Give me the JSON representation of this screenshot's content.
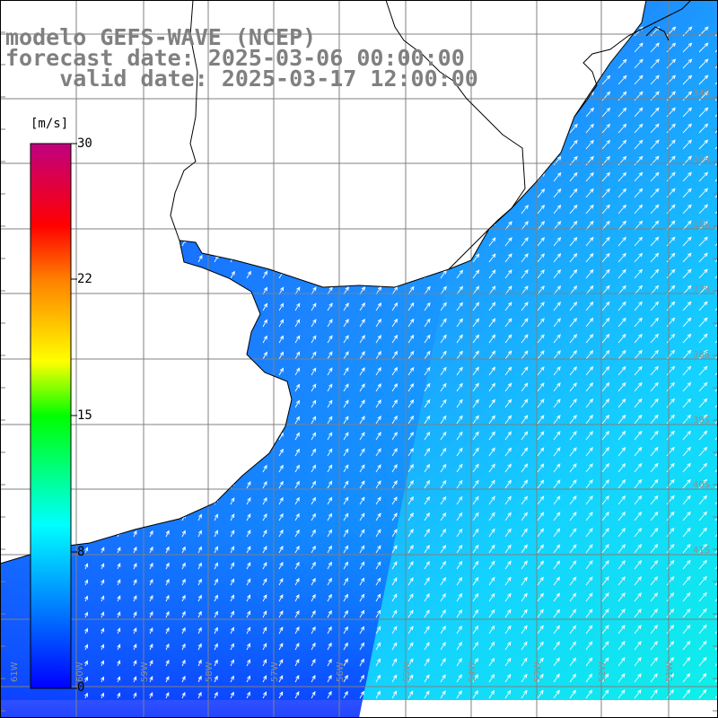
{
  "title": {
    "line1": "modelo GEFS-WAVE (NCEP)",
    "line2": "forecast date: 2025-03-06 00:00:00",
    "line3": "valid date: 2025-03-17 12:00:00"
  },
  "colorbar": {
    "unit_label": "[m/s]",
    "min": 0,
    "max": 30,
    "ticks": [
      "30",
      "22",
      "15",
      "8",
      "0"
    ],
    "colors": [
      "#0000ff",
      "#00aaff",
      "#00ffff",
      "#00ff00",
      "#ffff00",
      "#ff8000",
      "#ff0000",
      "#c00080"
    ]
  },
  "map": {
    "lat_labels": [
      "34S",
      "35S",
      "36S",
      "37S",
      "38S",
      "39S",
      "40S",
      "41S"
    ],
    "lon_labels": [
      "61W",
      "60W",
      "59W",
      "58W",
      "57W",
      "56W",
      "55W",
      "54W",
      "53W",
      "52W",
      "51W"
    ],
    "land_color": "#ffffff",
    "grid_color": "#808080",
    "arrow_color": "#ffffff"
  }
}
